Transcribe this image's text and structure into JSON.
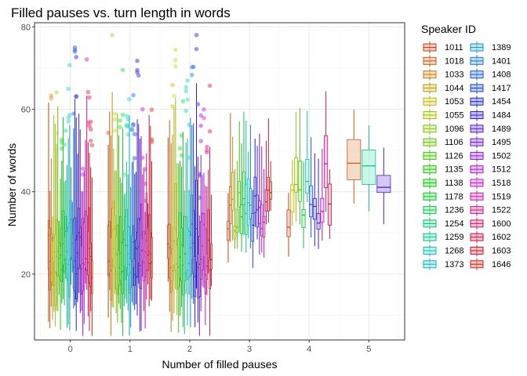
{
  "chart_data": {
    "type": "boxplot",
    "title": "Filled pauses vs. turn length in words",
    "xlabel": "Number of filled pauses",
    "ylabel": "Number of words",
    "xlim": [
      -0.6,
      5.6
    ],
    "ylim": [
      4,
      81
    ],
    "x_ticks": [
      0,
      1,
      2,
      3,
      4,
      5
    ],
    "y_ticks": [
      20,
      40,
      60,
      80
    ],
    "grid": true,
    "legend": {
      "title": "Speaker ID",
      "placement": "right",
      "columns": 2,
      "entries": [
        "1011",
        "1018",
        "1033",
        "1044",
        "1053",
        "1055",
        "1096",
        "1106",
        "1126",
        "1135",
        "1138",
        "1178",
        "1236",
        "1254",
        "1259",
        "1268",
        "1373",
        "1389",
        "1401",
        "1408",
        "1417",
        "1454",
        "1484",
        "1489",
        "1495",
        "1502",
        "1512",
        "1518",
        "1519",
        "1522",
        "1600",
        "1602",
        "1603",
        "1646"
      ]
    },
    "groups": [
      {
        "x": 0,
        "n_speakers": 34
      },
      {
        "x": 1,
        "n_speakers": 34
      },
      {
        "x": 2,
        "n_speakers": 30
      },
      {
        "x": 3,
        "n_speakers": 20
      },
      {
        "x": 4,
        "n_speakers": 12
      },
      {
        "x": 5,
        "n_speakers": 3
      }
    ],
    "annotations": []
  }
}
